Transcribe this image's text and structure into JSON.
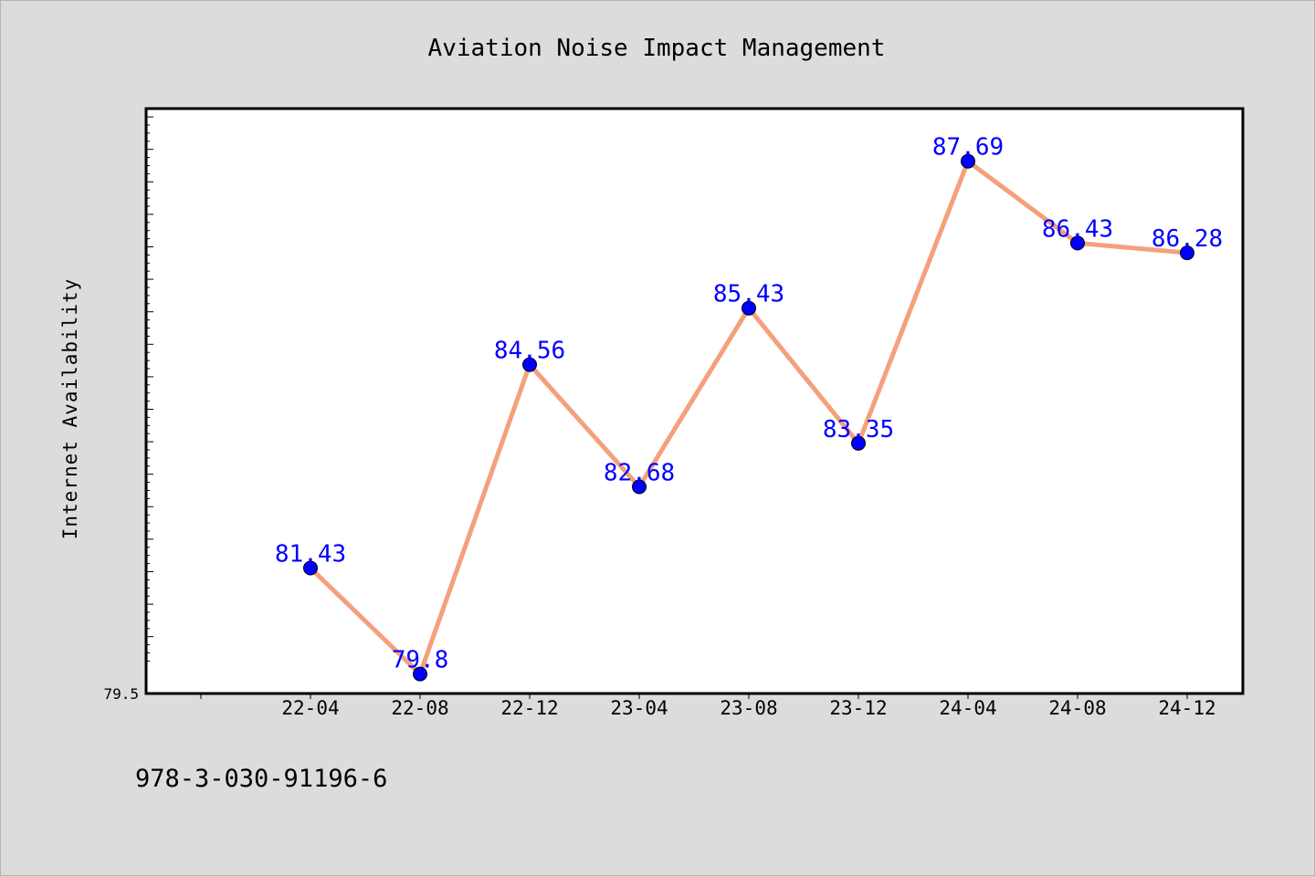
{
  "chart_data": {
    "type": "line",
    "title": "Aviation Noise Impact Management",
    "xlabel": "",
    "ylabel": "Internet Availability",
    "categories": [
      "22-04",
      "22-08",
      "22-12",
      "23-04",
      "23-08",
      "23-12",
      "24-04",
      "24-08",
      "24-12"
    ],
    "series": [
      {
        "values": [
          81.43,
          79.8,
          84.56,
          82.68,
          85.43,
          83.35,
          87.69,
          86.43,
          86.28
        ],
        "line_color": "#f5a07c",
        "marker_color": "#0000ff",
        "label_color": "#0000ff"
      }
    ],
    "ylim": [
      79.5,
      88.5
    ],
    "ytick_labels": [
      "79.5"
    ],
    "grid": false,
    "legend": "none"
  },
  "footer": {
    "id_text": "978-3-030-91196-6"
  },
  "colors": {
    "background": "#dcdcdc",
    "plot_background": "#ffffff",
    "axis": "#000000"
  }
}
